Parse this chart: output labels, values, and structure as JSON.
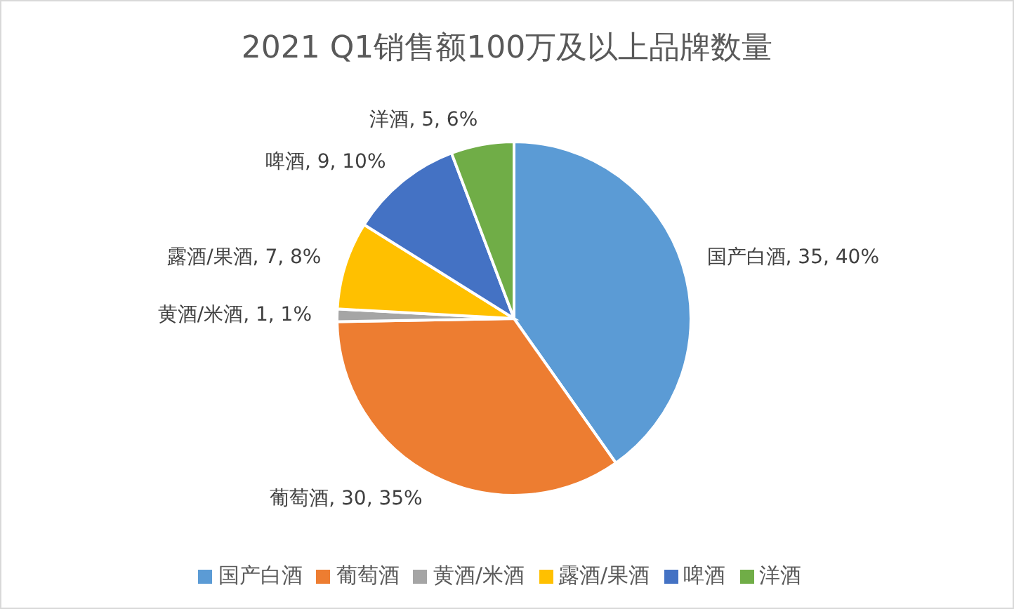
{
  "chart_data": {
    "type": "pie",
    "title": "2021 Q1销售额100万及以上品牌数量",
    "categories": [
      "国产白酒",
      "葡萄酒",
      "黄酒/米酒",
      "露酒/果酒",
      "啤酒",
      "洋酒"
    ],
    "values": [
      35,
      30,
      1,
      7,
      9,
      5
    ],
    "value_labels": [
      "国产白酒, 35, 40%",
      "葡萄酒, 30, 35%",
      "黄酒/米酒, 1, 1%",
      "露酒/果酒, 7, 8%",
      "啤酒, 9, 10%",
      "洋酒, 5, 6%"
    ],
    "colors": [
      "#5b9bd5",
      "#ed7d31",
      "#a5a5a5",
      "#ffc000",
      "#4472c4",
      "#70ad47"
    ],
    "legend": "bottom"
  }
}
